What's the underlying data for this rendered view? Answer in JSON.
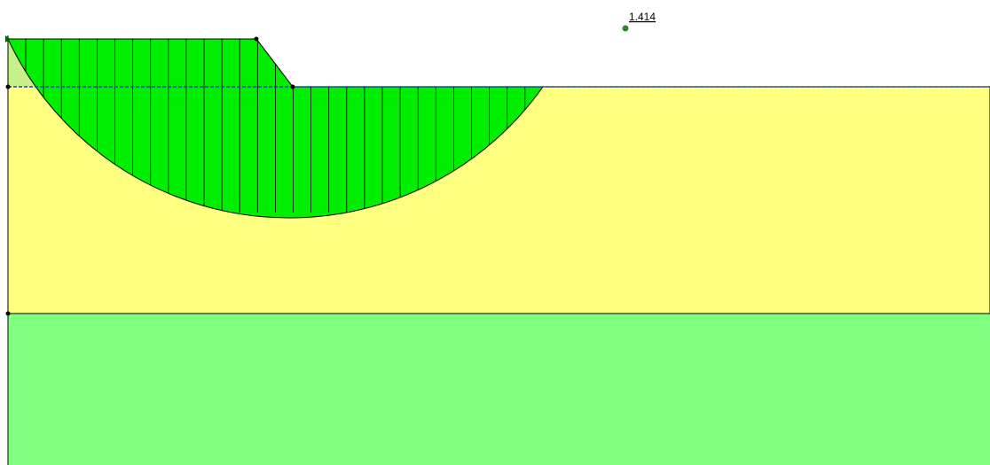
{
  "factor_of_safety": {
    "label": "1.414"
  }
}
